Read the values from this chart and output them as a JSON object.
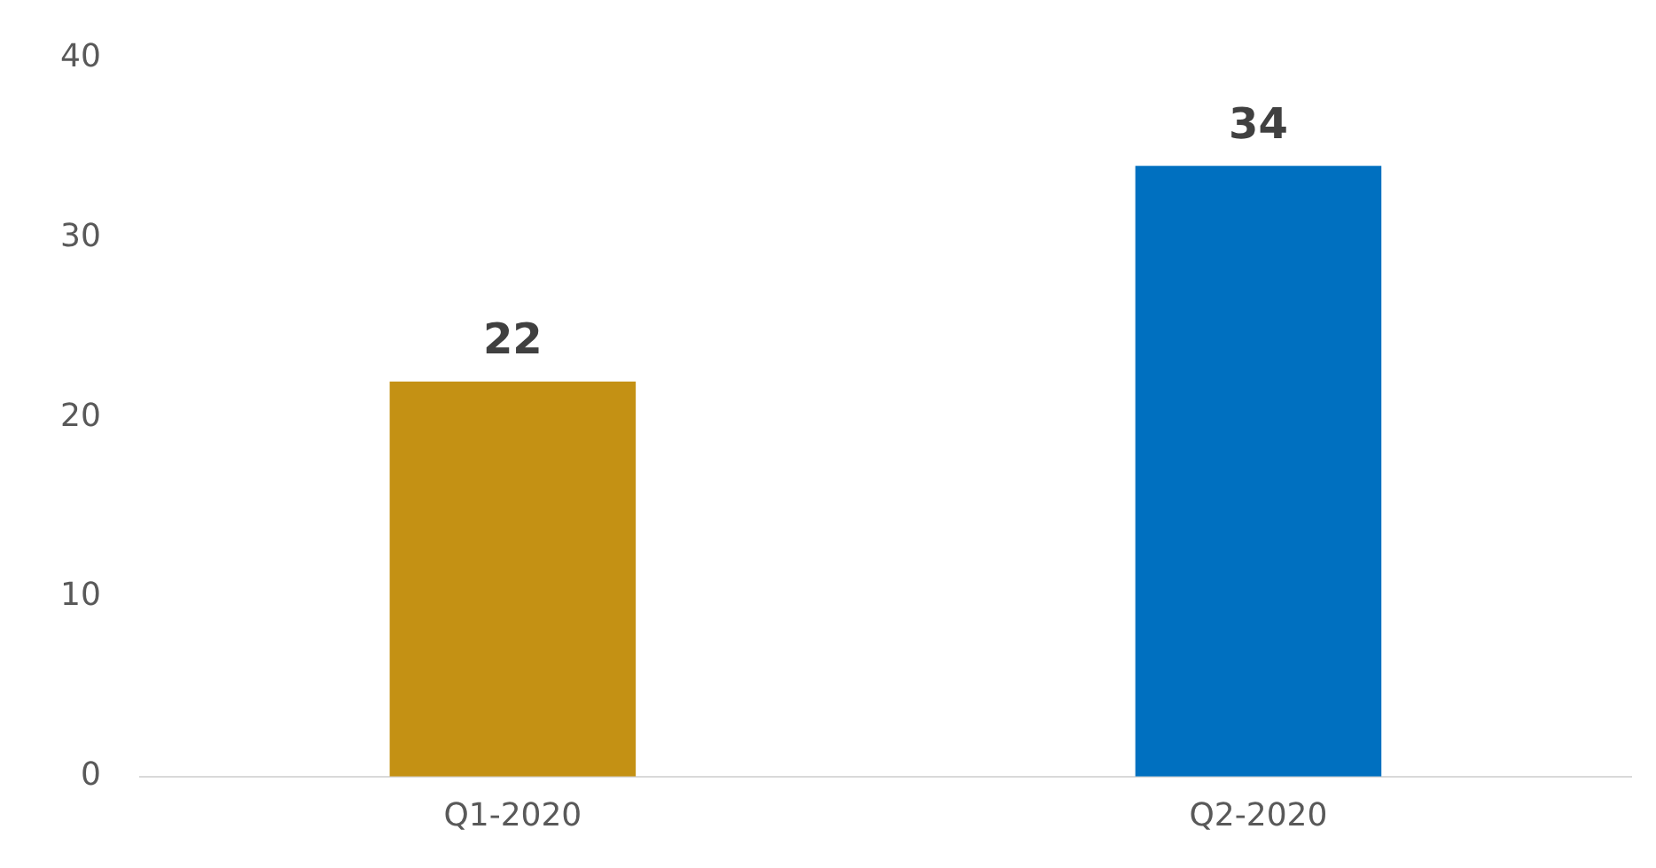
{
  "chart_data": {
    "type": "bar",
    "categories": [
      "Q1-2020",
      "Q2-2020"
    ],
    "values": [
      22,
      34
    ],
    "colors": [
      "#c49114",
      "#0070c0"
    ],
    "ylim": [
      0,
      40
    ],
    "yticks": [
      0,
      10,
      20,
      30,
      40
    ],
    "grid": false,
    "data_labels": true
  }
}
